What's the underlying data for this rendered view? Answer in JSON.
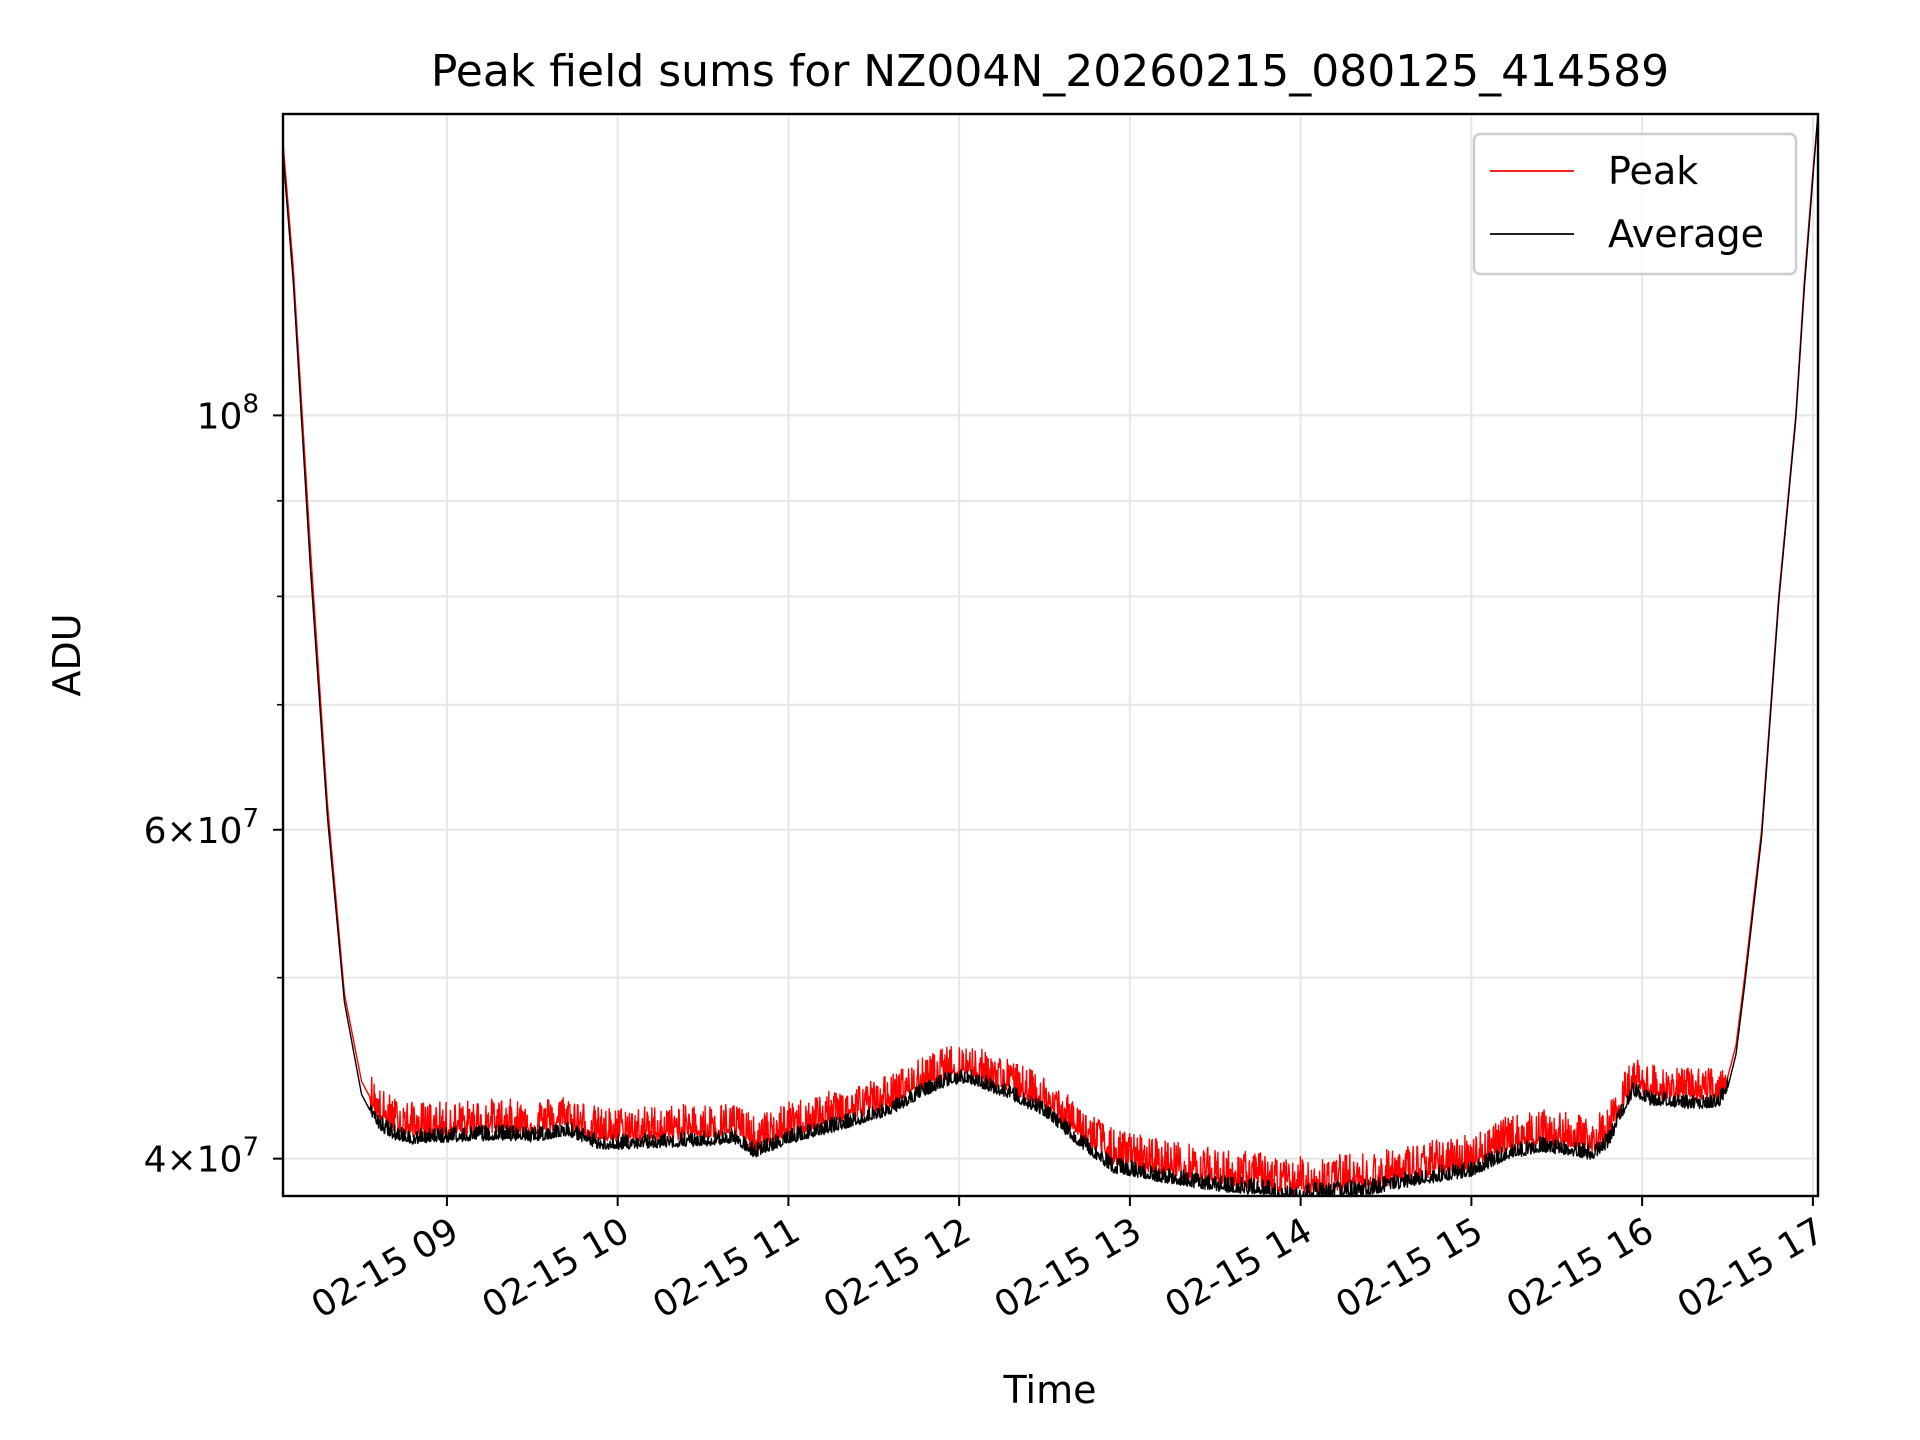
{
  "chart_data": {
    "type": "line",
    "title": "Peak field sums for NZ004N_20260215_080125_414589",
    "xlabel": "Time",
    "ylabel": "ADU",
    "x_unit": "hours since 2026-02-15 00:00",
    "xlim": [
      8.04,
      17.03
    ],
    "ylim": [
      38200000,
      145000000
    ],
    "y_scale": "log",
    "grid": true,
    "legend_position": "top-right",
    "x_ticks": [
      {
        "value": 9,
        "label": "02-15 09"
      },
      {
        "value": 10,
        "label": "02-15 10"
      },
      {
        "value": 11,
        "label": "02-15 11"
      },
      {
        "value": 12,
        "label": "02-15 12"
      },
      {
        "value": 13,
        "label": "02-15 13"
      },
      {
        "value": 14,
        "label": "02-15 14"
      },
      {
        "value": 15,
        "label": "02-15 15"
      },
      {
        "value": 16,
        "label": "02-15 16"
      },
      {
        "value": 17,
        "label": "02-15 17"
      }
    ],
    "y_major_ticks": [
      {
        "value": 40000000,
        "mantissa": "4",
        "times": "×",
        "base": "10",
        "exp": "7"
      },
      {
        "value": 60000000,
        "mantissa": "6",
        "times": "×",
        "base": "10",
        "exp": "7"
      },
      {
        "value": 100000000,
        "mantissa": "",
        "times": "",
        "base": "10",
        "exp": "8"
      }
    ],
    "y_minor_ticks": [
      50000000,
      70000000,
      80000000,
      90000000
    ],
    "series": [
      {
        "name": "Peak",
        "color": "#ff0000",
        "noise_amplitude": 1400000,
        "x": [
          8.04,
          8.1,
          8.2,
          8.3,
          8.4,
          8.5,
          8.6,
          8.7,
          8.8,
          9.0,
          9.3,
          9.5,
          9.7,
          9.9,
          10.2,
          10.5,
          10.7,
          10.8,
          11.0,
          11.3,
          11.6,
          11.8,
          11.95,
          12.05,
          12.3,
          12.5,
          12.7,
          12.9,
          13.2,
          13.5,
          13.8,
          13.9,
          14.1,
          14.4,
          14.7,
          15.0,
          15.2,
          15.4,
          15.6,
          15.7,
          15.8,
          15.9,
          15.95,
          16.05,
          16.3,
          16.45,
          16.5,
          16.55,
          16.6,
          16.7,
          16.8,
          16.9,
          16.95,
          17.0,
          17.03
        ],
        "y": [
          140000000,
          120000000,
          85000000,
          62000000,
          49000000,
          44000000,
          42300000,
          41700000,
          41500000,
          41500000,
          41700000,
          41600000,
          41900000,
          41200000,
          41300000,
          41400000,
          41500000,
          40700000,
          41500000,
          42200000,
          43000000,
          44000000,
          44600000,
          44700000,
          43800000,
          42900000,
          41400000,
          40100000,
          39600000,
          39100000,
          38900000,
          38600000,
          38800000,
          38900000,
          39400000,
          39900000,
          40700000,
          41100000,
          40900000,
          40600000,
          41300000,
          43200000,
          44000000,
          43500000,
          43300000,
          43400000,
          44200000,
          46000000,
          50000000,
          60000000,
          80000000,
          100000000,
          118000000,
          135000000,
          145000000
        ]
      },
      {
        "name": "Average",
        "color": "#000000",
        "noise_amplitude": 600000,
        "x": [
          8.04,
          8.1,
          8.2,
          8.3,
          8.4,
          8.5,
          8.6,
          8.7,
          8.8,
          9.0,
          9.3,
          9.5,
          9.7,
          9.9,
          10.2,
          10.5,
          10.7,
          10.8,
          11.0,
          11.3,
          11.6,
          11.8,
          11.95,
          12.05,
          12.3,
          12.5,
          12.7,
          12.9,
          13.2,
          13.5,
          13.8,
          13.9,
          14.1,
          14.4,
          14.7,
          15.0,
          15.2,
          15.4,
          15.6,
          15.7,
          15.8,
          15.9,
          15.95,
          16.05,
          16.3,
          16.45,
          16.5,
          16.55,
          16.6,
          16.7,
          16.8,
          16.9,
          16.95,
          17.0,
          17.03
        ],
        "y": [
          138000000,
          118000000,
          83000000,
          61000000,
          48500000,
          43300000,
          41600000,
          41100000,
          40900000,
          41000000,
          41100000,
          41000000,
          41300000,
          40600000,
          40700000,
          40800000,
          40900000,
          40200000,
          40900000,
          41600000,
          42400000,
          43400000,
          44000000,
          44100000,
          43200000,
          42300000,
          40800000,
          39500000,
          39000000,
          38600000,
          38400000,
          38100000,
          38300000,
          38400000,
          38900000,
          39300000,
          40100000,
          40500000,
          40300000,
          40100000,
          40700000,
          42600000,
          43400000,
          42900000,
          42700000,
          42800000,
          43600000,
          45500000,
          49500000,
          59500000,
          79500000,
          99500000,
          117000000,
          134000000,
          145000000
        ]
      }
    ]
  }
}
